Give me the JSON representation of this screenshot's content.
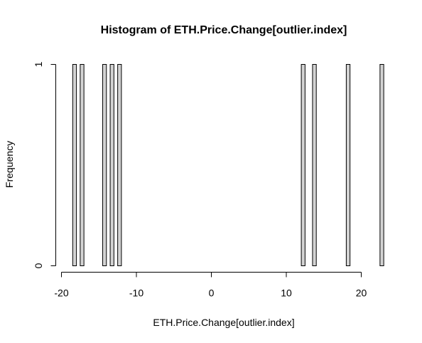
{
  "chart_data": {
    "type": "bar",
    "title": "Histogram of ETH.Price.Change[outlier.index]",
    "xlabel": "ETH.Price.Change[outlier.index]",
    "ylabel": "Frequency",
    "xlim": [
      -20,
      23.5
    ],
    "ylim": [
      0,
      1
    ],
    "x_ticks": [
      -20,
      -10,
      0,
      10,
      20
    ],
    "y_ticks": [
      0,
      1
    ],
    "bin_width": 0.5,
    "bin_range": [
      -18.5,
      23
    ],
    "bins": [
      {
        "start": -18.5,
        "end": -18.0,
        "count": 1
      },
      {
        "start": -17.5,
        "end": -17.0,
        "count": 1
      },
      {
        "start": -14.5,
        "end": -14.0,
        "count": 1
      },
      {
        "start": -13.5,
        "end": -13.0,
        "count": 1
      },
      {
        "start": -12.5,
        "end": -12.0,
        "count": 1
      },
      {
        "start": 12.0,
        "end": 12.5,
        "count": 1
      },
      {
        "start": 13.5,
        "end": 14.0,
        "count": 1
      },
      {
        "start": 18.0,
        "end": 18.5,
        "count": 1
      },
      {
        "start": 22.5,
        "end": 23.0,
        "count": 1
      }
    ],
    "bar_fill": "#d3d3d3",
    "bar_stroke": "#000000",
    "grid": false,
    "legend": "none"
  }
}
